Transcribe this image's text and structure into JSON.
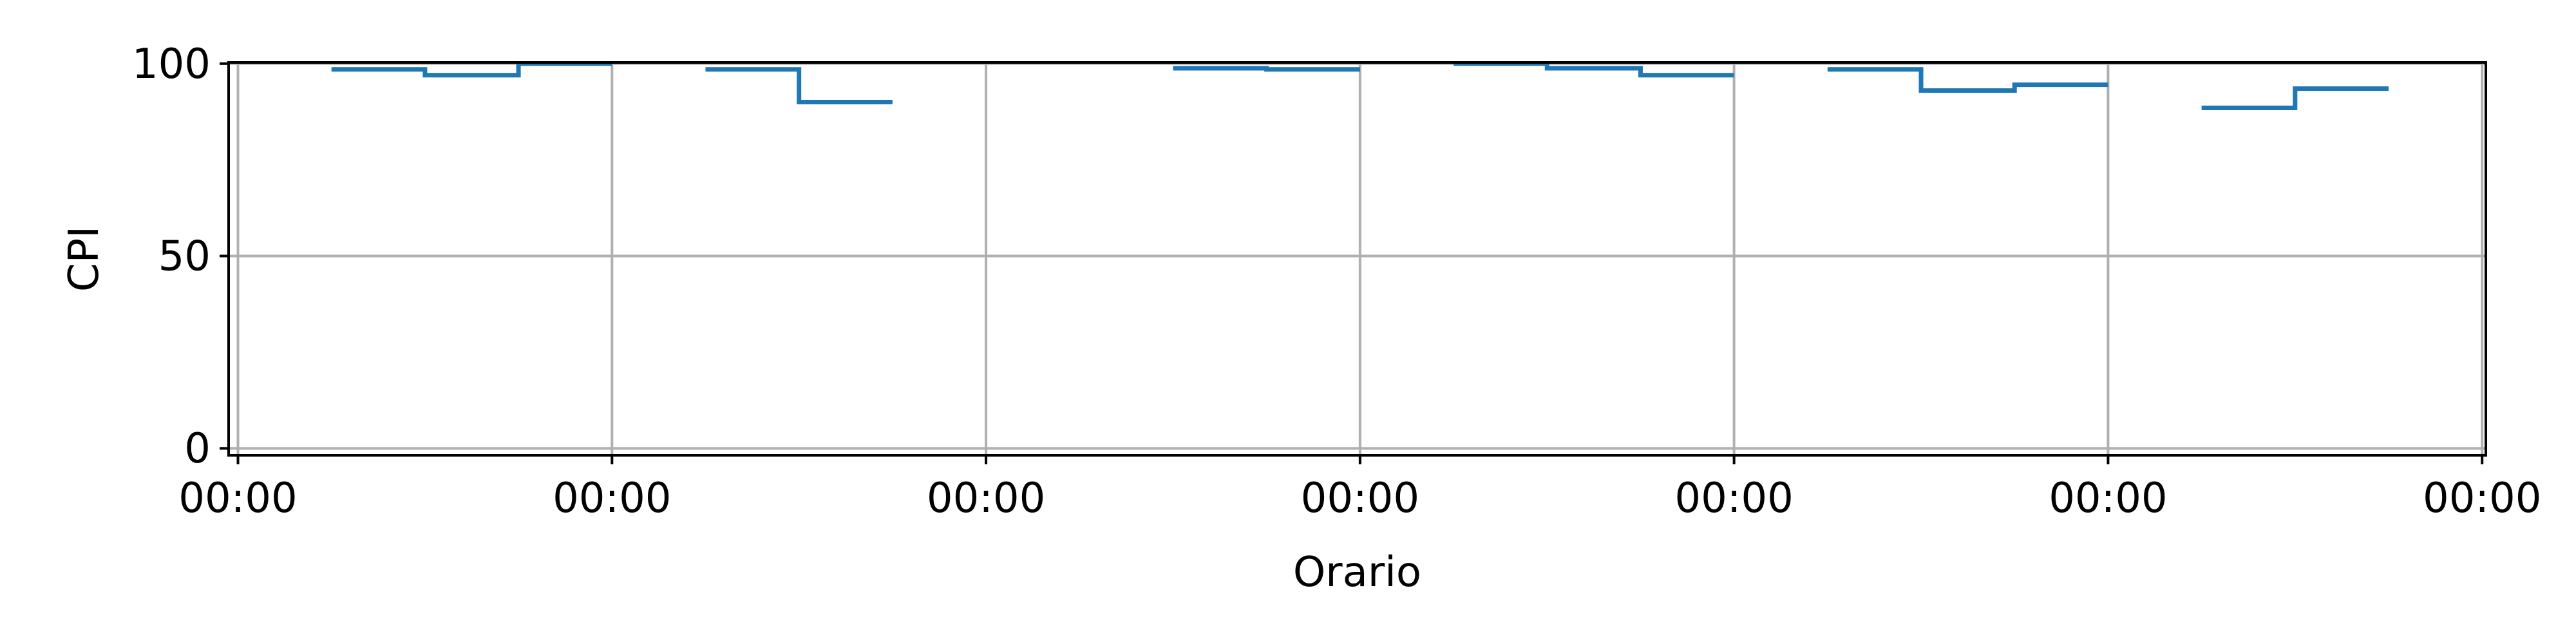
{
  "chart_data": {
    "type": "line",
    "drawstyle": "steps-post",
    "title": "",
    "xlabel": "Orario",
    "ylabel": "CPI",
    "ylim": [
      0,
      100
    ],
    "xlim": [
      -0.025,
      6.01
    ],
    "grid": true,
    "x_ticks": [
      {
        "value": 0,
        "label": "00:00"
      },
      {
        "value": 1,
        "label": "00:00"
      },
      {
        "value": 2,
        "label": "00:00"
      },
      {
        "value": 3,
        "label": "00:00"
      },
      {
        "value": 4,
        "label": "00:00"
      },
      {
        "value": 5,
        "label": "00:00"
      },
      {
        "value": 6,
        "label": "00:00"
      }
    ],
    "y_ticks": [
      {
        "value": 0,
        "label": "0"
      },
      {
        "value": 50,
        "label": "50"
      },
      {
        "value": 100,
        "label": "100"
      }
    ],
    "series_color": "#1f77b4",
    "series": [
      {
        "segments": [
          {
            "x": [
              0.25,
              0.5,
              0.75,
              1.0
            ],
            "y": [
              98.5,
              97.0,
              100.0,
              100.0
            ]
          },
          {
            "x": [
              1.25,
              1.5,
              1.75
            ],
            "y": [
              98.5,
              90.0,
              90.0
            ]
          },
          {
            "x": [
              2.5,
              2.75,
              3.0
            ],
            "y": [
              98.8,
              98.5,
              98.5
            ]
          },
          {
            "x": [
              3.25,
              3.5,
              3.75,
              4.0
            ],
            "y": [
              100.0,
              98.8,
              97.0,
              97.0
            ]
          },
          {
            "x": [
              4.25,
              4.5,
              4.75,
              5.0
            ],
            "y": [
              98.5,
              93.0,
              94.5,
              94.5
            ]
          },
          {
            "x": [
              5.25,
              5.5,
              5.75
            ],
            "y": [
              88.5,
              93.5,
              93.5
            ]
          }
        ]
      }
    ]
  }
}
